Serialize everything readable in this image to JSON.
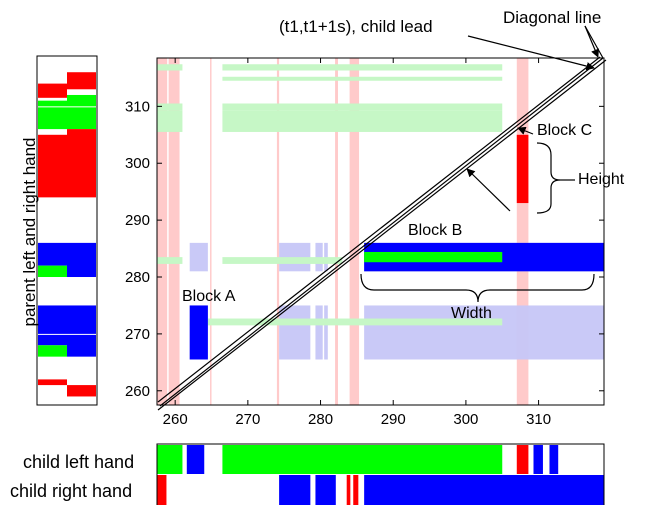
{
  "labels": {
    "parent_axis": "parent left and right hand",
    "child_lead": "(t1,t1+1s), child lead",
    "diagonal_line": "Diagonal line",
    "block_a": "Block A",
    "block_b": "Block B",
    "block_c": "Block C",
    "height": "Height",
    "width": "Width",
    "child_left": "child left hand",
    "child_right": "child right hand"
  },
  "axes": {
    "x_min": 257.5,
    "x_max": 319,
    "y_min": 257.5,
    "y_max": 318.5,
    "x_ticks": [
      260,
      270,
      280,
      290,
      300,
      310
    ],
    "y_ticks": [
      260,
      270,
      280,
      290,
      300,
      310
    ]
  },
  "colors": {
    "red": "#ff0000",
    "green": "#00ff00",
    "blue": "#0000ff",
    "light_red": "#ffc4c4",
    "light_green": "#c6f7c6",
    "light_blue": "#c6c6f7"
  },
  "diagram_blocks": [
    {
      "kind": "block-c",
      "x0": 307,
      "x1": 308.6,
      "y0": 293,
      "y1": 305,
      "color": "red"
    },
    {
      "kind": "block-b",
      "x0": 286,
      "x1": 319,
      "y0": 281,
      "y1": 286,
      "color": "blue"
    },
    {
      "kind": "block-a",
      "x0": 262,
      "x1": 264.5,
      "y0": 265.5,
      "y1": 275,
      "color": "blue"
    }
  ],
  "child_hands": {
    "left": [
      {
        "x0": 257.5,
        "x1": 261,
        "color": "green"
      },
      {
        "x0": 261.6,
        "x1": 264,
        "color": "blue"
      },
      {
        "x0": 266.5,
        "x1": 305,
        "color": "green"
      },
      {
        "x0": 307,
        "x1": 308.6,
        "color": "red"
      },
      {
        "x0": 309.3,
        "x1": 310.6,
        "color": "blue"
      },
      {
        "x0": 311.5,
        "x1": 312.7,
        "color": "blue"
      }
    ],
    "right": [
      {
        "x0": 257.5,
        "x1": 258.8,
        "color": "red"
      },
      {
        "x0": 274.3,
        "x1": 278.6,
        "color": "blue"
      },
      {
        "x0": 279.3,
        "x1": 282.1,
        "color": "blue"
      },
      {
        "x0": 283.6,
        "x1": 284.1,
        "color": "red"
      },
      {
        "x0": 284.5,
        "x1": 285.2,
        "color": "red"
      },
      {
        "x0": 286,
        "x1": 319,
        "color": "blue"
      }
    ]
  },
  "parent_hands": {
    "left": [
      {
        "y0": 311.5,
        "y1": 314,
        "color": "red"
      },
      {
        "y0": 306,
        "y1": 311,
        "color": "green"
      },
      {
        "y0": 294,
        "y1": 305,
        "color": "red"
      },
      {
        "y0": 282,
        "y1": 286,
        "color": "blue"
      },
      {
        "y0": 280,
        "y1": 282,
        "color": "green"
      },
      {
        "y0": 268,
        "y1": 275,
        "color": "blue"
      },
      {
        "y0": 266,
        "y1": 268,
        "color": "green"
      },
      {
        "y0": 261,
        "y1": 262,
        "color": "red"
      }
    ],
    "right": [
      {
        "y0": 313,
        "y1": 316,
        "color": "red"
      },
      {
        "y0": 306,
        "y1": 312,
        "color": "green"
      },
      {
        "y0": 294,
        "y1": 306,
        "color": "red"
      },
      {
        "y0": 280,
        "y1": 286,
        "color": "blue"
      },
      {
        "y0": 266,
        "y1": 275,
        "color": "blue"
      },
      {
        "y0": 259,
        "y1": 261,
        "color": "red"
      }
    ]
  }
}
